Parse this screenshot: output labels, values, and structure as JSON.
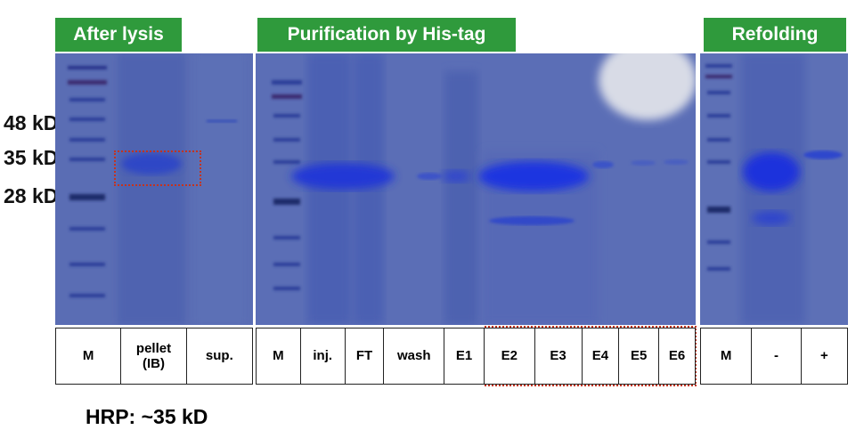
{
  "headers": {
    "lysis": "After lysis",
    "purification": "Purification by His-tag",
    "refolding": "Refolding"
  },
  "markers": {
    "m48": "48 kD",
    "m35": "35 kD",
    "m28": "28 kD"
  },
  "lanes_lysis": [
    "M",
    "pellet\n(IB)",
    "sup."
  ],
  "lanes_purification": [
    "M",
    "inj.",
    "FT",
    "wash",
    "E1",
    "E2",
    "E3",
    "E4",
    "E5",
    "E6"
  ],
  "lanes_refolding": [
    "M",
    "-",
    "+"
  ],
  "footer": "HRP: ~35 kD",
  "colors": {
    "header_green": "#2f9a3c",
    "gel_blue": "#5567b0",
    "band_blue": "#2b3fd0",
    "highlight_red": "#c3331f"
  }
}
